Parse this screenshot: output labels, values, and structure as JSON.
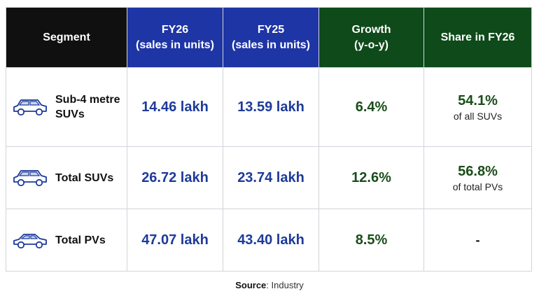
{
  "table": {
    "headers": [
      {
        "line1": "Segment",
        "line2": ""
      },
      {
        "line1": "FY26",
        "line2": "(sales in units)"
      },
      {
        "line1": "FY25",
        "line2": "(sales in units)"
      },
      {
        "line1": "Growth",
        "line2": "(y-o-y)"
      },
      {
        "line1": "Share in FY26",
        "line2": ""
      }
    ],
    "rows": [
      {
        "icon": "suv-car-icon",
        "segment": "Sub-4 metre SUVs",
        "fy26": "14.46 lakh",
        "fy25": "13.59 lakh",
        "growth": "6.4%",
        "share": "54.1%",
        "share_note": "of all SUVs"
      },
      {
        "icon": "suv-car-icon",
        "segment": "Total SUVs",
        "fy26": "26.72 lakh",
        "fy25": "23.74 lakh",
        "growth": "12.6%",
        "share": "56.8%",
        "share_note": "of total PVs"
      },
      {
        "icon": "sedan-car-icon",
        "segment": "Total PVs",
        "fy26": "47.07 lakh",
        "fy25": "43.40 lakh",
        "growth": "8.5%",
        "share": "-",
        "share_note": ""
      }
    ]
  },
  "source": {
    "label": "Source",
    "text": ": Industry"
  },
  "colors": {
    "header_black": "#101010",
    "header_blue": "#1e35a5",
    "header_green": "#0f4a1a",
    "value_blue": "#1d3a9a",
    "value_green": "#1a4d1a"
  }
}
